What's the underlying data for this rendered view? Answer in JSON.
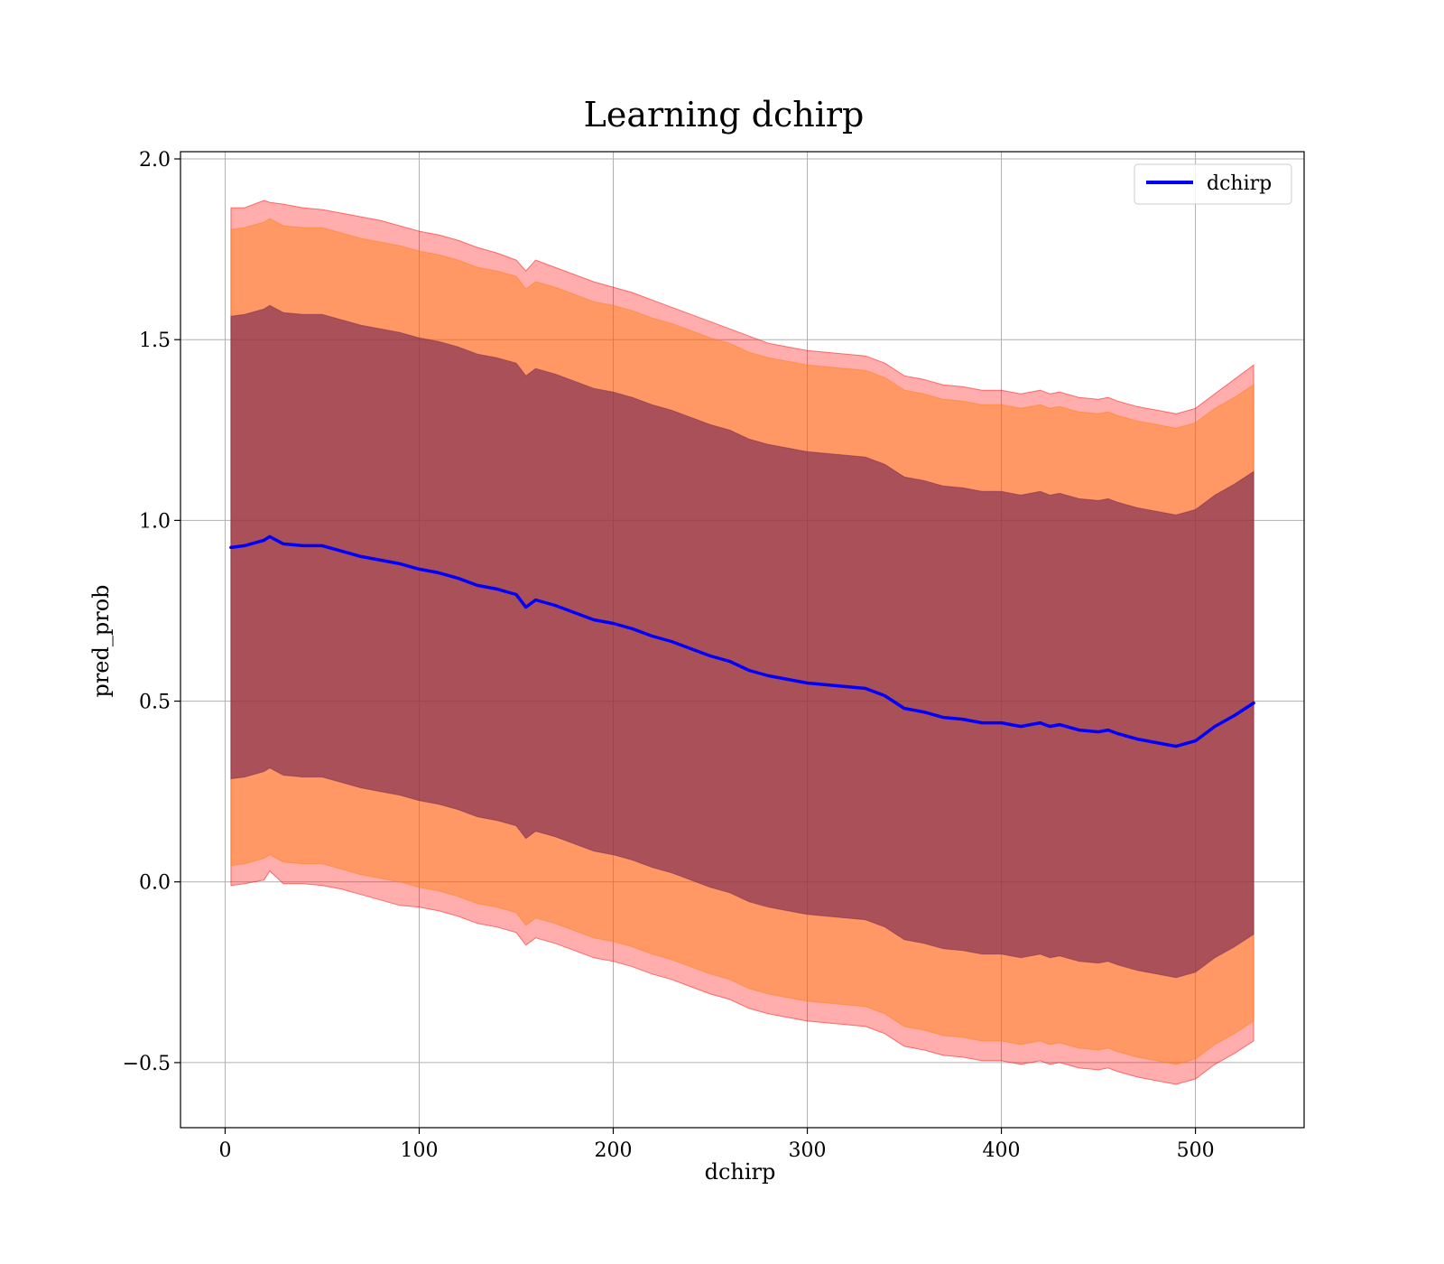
{
  "chart_data": {
    "type": "line",
    "title": "Learning dchirp",
    "xlabel": "dchirp",
    "ylabel": "pred_prob",
    "xlim": [
      -23,
      556
    ],
    "ylim": [
      -0.68,
      2.02
    ],
    "xticks": [
      0,
      100,
      200,
      300,
      400,
      500
    ],
    "yticks": [
      -0.5,
      0.0,
      0.5,
      1.0,
      1.5,
      2.0
    ],
    "xtick_labels": [
      "0",
      "100",
      "200",
      "300",
      "400",
      "500"
    ],
    "ytick_labels": [
      "−0.5",
      "0.0",
      "0.5",
      "1.0",
      "1.5",
      "2.0"
    ],
    "grid": true,
    "legend_position": "top-right",
    "series": [
      {
        "name": "dchirp",
        "color": "#0000ff",
        "x": [
          3,
          10,
          20,
          23,
          30,
          40,
          50,
          60,
          70,
          80,
          90,
          100,
          110,
          120,
          130,
          140,
          150,
          155,
          160,
          170,
          180,
          190,
          200,
          210,
          220,
          230,
          240,
          250,
          260,
          270,
          280,
          290,
          300,
          310,
          320,
          330,
          340,
          350,
          360,
          370,
          380,
          390,
          400,
          405,
          410,
          420,
          425,
          430,
          440,
          450,
          455,
          460,
          470,
          480,
          490,
          500,
          510,
          520,
          530
        ],
        "y": [
          0.925,
          0.93,
          0.945,
          0.955,
          0.935,
          0.93,
          0.93,
          0.915,
          0.9,
          0.89,
          0.88,
          0.865,
          0.855,
          0.84,
          0.82,
          0.81,
          0.795,
          0.76,
          0.78,
          0.765,
          0.745,
          0.725,
          0.715,
          0.7,
          0.68,
          0.665,
          0.645,
          0.625,
          0.61,
          0.585,
          0.57,
          0.56,
          0.55,
          0.545,
          0.54,
          0.535,
          0.515,
          0.48,
          0.47,
          0.455,
          0.45,
          0.44,
          0.44,
          0.435,
          0.43,
          0.44,
          0.43,
          0.435,
          0.42,
          0.415,
          0.42,
          0.41,
          0.395,
          0.385,
          0.375,
          0.39,
          0.43,
          0.46,
          0.495
        ]
      }
    ],
    "bands": [
      {
        "color": "#ff0000",
        "opacity": 0.32,
        "upper": [
          1.865,
          1.865,
          1.885,
          1.88,
          1.875,
          1.865,
          1.86,
          1.85,
          1.84,
          1.83,
          1.815,
          1.8,
          1.79,
          1.775,
          1.755,
          1.74,
          1.72,
          1.69,
          1.72,
          1.7,
          1.68,
          1.66,
          1.645,
          1.63,
          1.61,
          1.59,
          1.57,
          1.55,
          1.53,
          1.51,
          1.49,
          1.48,
          1.47,
          1.465,
          1.46,
          1.455,
          1.435,
          1.4,
          1.39,
          1.375,
          1.37,
          1.36,
          1.36,
          1.355,
          1.35,
          1.36,
          1.35,
          1.355,
          1.34,
          1.335,
          1.34,
          1.33,
          1.315,
          1.305,
          1.295,
          1.31,
          1.35,
          1.39,
          1.43
        ],
        "lower": [
          -0.01,
          -0.005,
          0.005,
          0.03,
          -0.005,
          -0.005,
          -0.01,
          -0.02,
          -0.035,
          -0.05,
          -0.065,
          -0.07,
          -0.08,
          -0.095,
          -0.115,
          -0.125,
          -0.14,
          -0.175,
          -0.155,
          -0.17,
          -0.19,
          -0.21,
          -0.22,
          -0.235,
          -0.255,
          -0.27,
          -0.29,
          -0.31,
          -0.325,
          -0.35,
          -0.365,
          -0.375,
          -0.385,
          -0.39,
          -0.395,
          -0.4,
          -0.42,
          -0.455,
          -0.465,
          -0.48,
          -0.485,
          -0.495,
          -0.495,
          -0.5,
          -0.505,
          -0.495,
          -0.505,
          -0.5,
          -0.515,
          -0.52,
          -0.515,
          -0.525,
          -0.54,
          -0.55,
          -0.56,
          -0.545,
          -0.505,
          -0.475,
          -0.44
        ]
      },
      {
        "color": "#ff7f0e",
        "opacity": 0.45,
        "upper": [
          1.805,
          1.81,
          1.825,
          1.835,
          1.815,
          1.81,
          1.81,
          1.795,
          1.78,
          1.77,
          1.76,
          1.745,
          1.735,
          1.72,
          1.7,
          1.69,
          1.675,
          1.64,
          1.66,
          1.645,
          1.625,
          1.605,
          1.595,
          1.58,
          1.56,
          1.545,
          1.525,
          1.505,
          1.49,
          1.465,
          1.45,
          1.44,
          1.43,
          1.425,
          1.42,
          1.415,
          1.395,
          1.36,
          1.35,
          1.335,
          1.33,
          1.32,
          1.32,
          1.315,
          1.31,
          1.32,
          1.31,
          1.315,
          1.3,
          1.295,
          1.3,
          1.29,
          1.275,
          1.265,
          1.255,
          1.27,
          1.31,
          1.34,
          1.375
        ],
        "lower": [
          0.045,
          0.05,
          0.065,
          0.075,
          0.055,
          0.05,
          0.05,
          0.035,
          0.02,
          0.01,
          0.0,
          -0.015,
          -0.025,
          -0.04,
          -0.06,
          -0.07,
          -0.085,
          -0.12,
          -0.1,
          -0.115,
          -0.135,
          -0.155,
          -0.165,
          -0.18,
          -0.2,
          -0.215,
          -0.235,
          -0.255,
          -0.27,
          -0.295,
          -0.31,
          -0.32,
          -0.33,
          -0.335,
          -0.34,
          -0.345,
          -0.365,
          -0.4,
          -0.41,
          -0.425,
          -0.43,
          -0.44,
          -0.44,
          -0.445,
          -0.45,
          -0.44,
          -0.45,
          -0.445,
          -0.46,
          -0.465,
          -0.46,
          -0.47,
          -0.485,
          -0.495,
          -0.505,
          -0.49,
          -0.45,
          -0.42,
          -0.385
        ]
      },
      {
        "color": "#7b2a52",
        "opacity": 0.65,
        "upper": [
          1.565,
          1.57,
          1.585,
          1.595,
          1.575,
          1.57,
          1.57,
          1.555,
          1.54,
          1.53,
          1.52,
          1.505,
          1.495,
          1.48,
          1.46,
          1.45,
          1.435,
          1.4,
          1.42,
          1.405,
          1.385,
          1.365,
          1.355,
          1.34,
          1.32,
          1.305,
          1.285,
          1.265,
          1.25,
          1.225,
          1.21,
          1.2,
          1.19,
          1.185,
          1.18,
          1.175,
          1.155,
          1.12,
          1.11,
          1.095,
          1.09,
          1.08,
          1.08,
          1.075,
          1.07,
          1.08,
          1.07,
          1.075,
          1.06,
          1.055,
          1.06,
          1.05,
          1.035,
          1.025,
          1.015,
          1.03,
          1.07,
          1.1,
          1.135
        ],
        "lower": [
          0.285,
          0.29,
          0.305,
          0.315,
          0.295,
          0.29,
          0.29,
          0.275,
          0.26,
          0.25,
          0.24,
          0.225,
          0.215,
          0.2,
          0.18,
          0.17,
          0.155,
          0.12,
          0.14,
          0.125,
          0.105,
          0.085,
          0.075,
          0.06,
          0.04,
          0.025,
          0.005,
          -0.015,
          -0.03,
          -0.055,
          -0.07,
          -0.08,
          -0.09,
          -0.095,
          -0.1,
          -0.105,
          -0.125,
          -0.16,
          -0.17,
          -0.185,
          -0.19,
          -0.2,
          -0.2,
          -0.205,
          -0.21,
          -0.2,
          -0.21,
          -0.205,
          -0.22,
          -0.225,
          -0.22,
          -0.23,
          -0.245,
          -0.255,
          -0.265,
          -0.25,
          -0.21,
          -0.18,
          -0.145
        ]
      }
    ]
  }
}
